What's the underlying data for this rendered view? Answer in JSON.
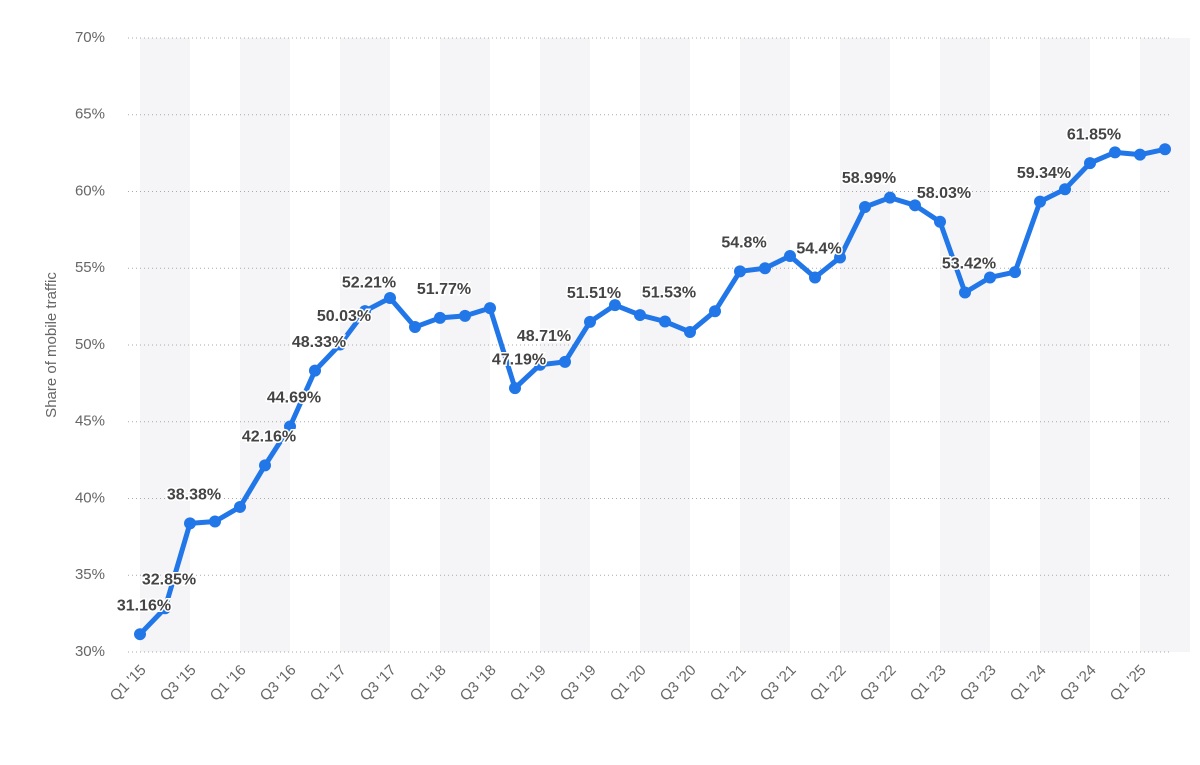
{
  "chart_data": {
    "type": "line",
    "y_axis_label": "Share of mobile traffic",
    "categories": [
      "Q1 '15",
      null,
      "Q3 '15",
      null,
      "Q1 '16",
      null,
      "Q3 '16",
      null,
      "Q1 '17",
      null,
      "Q3 '17",
      null,
      "Q1 '18",
      null,
      "Q3 '18",
      null,
      "Q1 '19",
      null,
      "Q3 '19",
      null,
      "Q1 '20",
      null,
      "Q3 '20",
      null,
      "Q1 '21",
      null,
      "Q3 '21",
      null,
      "Q1 '22",
      null,
      "Q3 '22",
      null,
      "Q1 '23",
      null,
      "Q3 '23",
      null,
      "Q1 '24",
      null,
      "Q3 '24",
      null,
      "Q1 '25",
      null
    ],
    "values": [
      31.16,
      32.85,
      38.38,
      38.5,
      39.45,
      42.16,
      44.69,
      48.33,
      50.03,
      52.21,
      53.06,
      51.17,
      51.77,
      51.9,
      52.4,
      47.19,
      48.71,
      48.9,
      51.51,
      52.6,
      51.95,
      51.53,
      50.85,
      52.2,
      54.8,
      55.0,
      55.8,
      54.4,
      55.7,
      58.99,
      59.6,
      59.1,
      58.03,
      53.42,
      54.4,
      54.75,
      59.34,
      60.15,
      61.85,
      62.55,
      62.4,
      62.75
    ],
    "value_labels": [
      "31.16%",
      "32.85%",
      "38.38%",
      null,
      null,
      "42.16%",
      "44.69%",
      "48.33%",
      "50.03%",
      "52.21%",
      null,
      null,
      "51.77%",
      null,
      null,
      "47.19%",
      "48.71%",
      null,
      "51.51%",
      null,
      null,
      "51.53%",
      null,
      null,
      "54.8%",
      null,
      null,
      "54.4%",
      null,
      "58.99%",
      null,
      null,
      "58.03%",
      "53.42%",
      null,
      null,
      "59.34%",
      null,
      "61.85%",
      null,
      null,
      null
    ],
    "color": "#2176e8",
    "ylim": [
      30,
      70
    ],
    "yticks": [
      {
        "value": 30,
        "label": "30%"
      },
      {
        "value": 35,
        "label": "35%"
      },
      {
        "value": 40,
        "label": "40%"
      },
      {
        "value": 45,
        "label": "45%"
      },
      {
        "value": 50,
        "label": "50%"
      },
      {
        "value": 55,
        "label": "55%"
      },
      {
        "value": 60,
        "label": "60%"
      },
      {
        "value": 65,
        "label": "65%"
      },
      {
        "value": 70,
        "label": "70%"
      }
    ],
    "grid": true
  }
}
